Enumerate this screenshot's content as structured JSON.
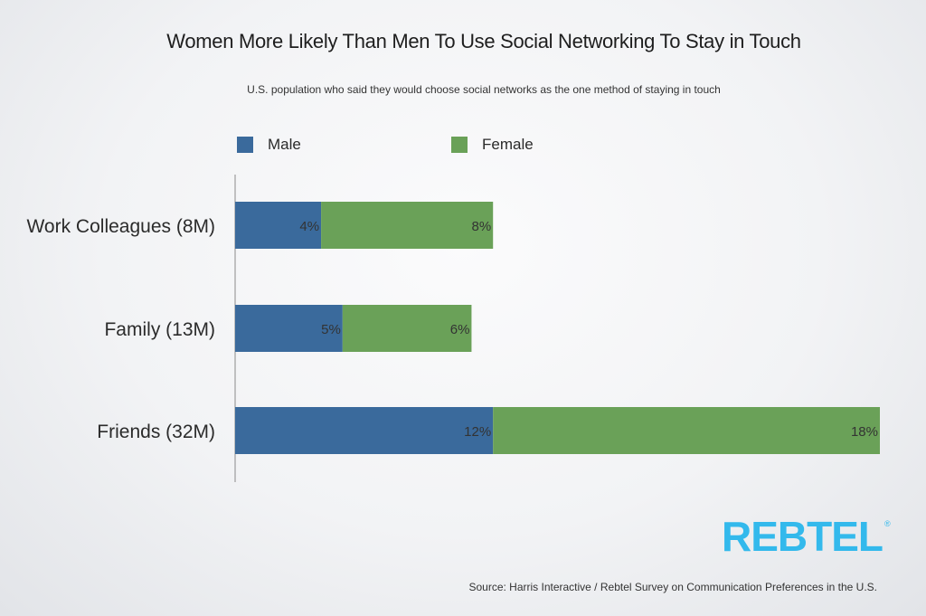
{
  "colors": {
    "male": "#3a6a9c",
    "female": "#6aa158",
    "brand": "#33b9ec",
    "axis": "#8a8a8a"
  },
  "header": {
    "title": "Women More Likely Than Men To Use Social Networking To Stay in Touch",
    "subtitle": "U.S. population who said they would choose social networks as the one method of staying in touch"
  },
  "chart_data": {
    "type": "bar",
    "orientation": "horizontal",
    "stacked": true,
    "categories": [
      "Work Colleagues (8M)",
      "Family (13M)",
      "Friends (32M)"
    ],
    "series": [
      {
        "name": "Male",
        "values": [
          4,
          5,
          12
        ],
        "labels": [
          "4%",
          "5%",
          "12%"
        ]
      },
      {
        "name": "Female",
        "values": [
          8,
          6,
          18
        ],
        "labels": [
          "8%",
          "6%",
          "18%"
        ]
      }
    ],
    "xlim": [
      0,
      30
    ],
    "grid": false,
    "legend": "top"
  },
  "logo": {
    "text": "REBTEL",
    "mark": "®"
  },
  "footer": {
    "source": "Source: Harris Interactive / Rebtel Survey on Communication Preferences in the U.S."
  }
}
